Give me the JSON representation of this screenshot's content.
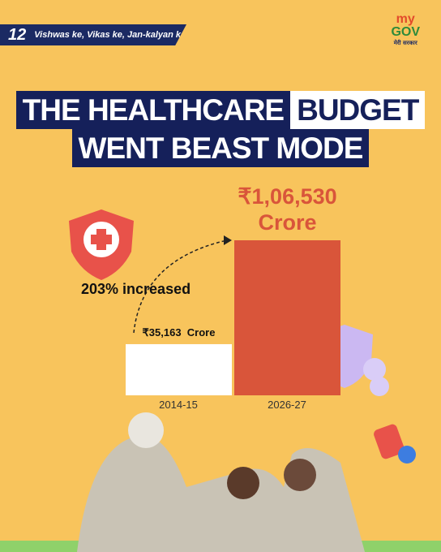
{
  "banner": {
    "number": "12",
    "text": "Vishwas ke, Vikas ke, Jan-kalyan ke"
  },
  "logo": {
    "my": "my",
    "gov": "GOV",
    "sub": "मेरी सरकार"
  },
  "chart_data": {
    "type": "bar",
    "title_parts": [
      "THE HEALTHCARE",
      "BUDGET",
      "WENT BEAST MODE"
    ],
    "annotation": "203% increased",
    "categories": [
      "2014-15",
      "2026-27"
    ],
    "values": [
      35163,
      106530
    ],
    "value_labels": [
      "₹35,163  Crore",
      "₹1,06,530 Crore"
    ],
    "colors": [
      "#ffffff",
      "#d9553a"
    ]
  }
}
